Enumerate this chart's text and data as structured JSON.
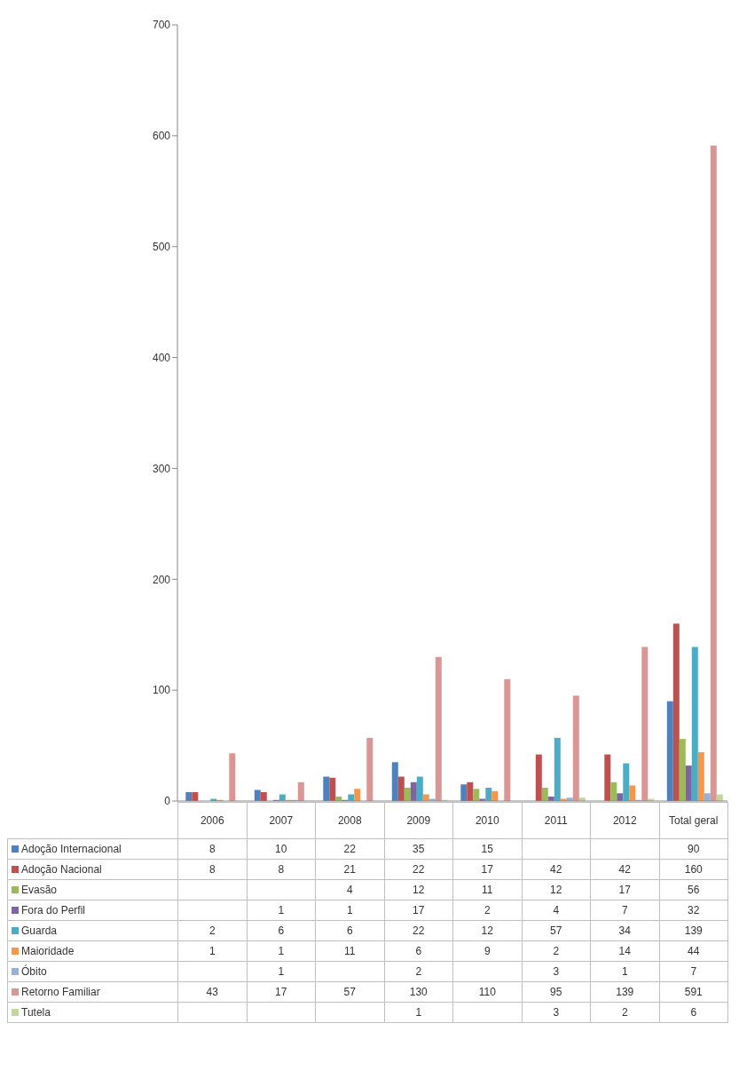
{
  "chart_data": {
    "type": "bar",
    "categories": [
      "2006",
      "2007",
      "2008",
      "2009",
      "2010",
      "2011",
      "2012",
      "Total geral"
    ],
    "series": [
      {
        "name": "Adoção Internacional",
        "color": "#4f81bd",
        "values": [
          8,
          10,
          22,
          35,
          15,
          null,
          null,
          90
        ]
      },
      {
        "name": "Adoção Nacional",
        "color": "#c0504d",
        "values": [
          8,
          8,
          21,
          22,
          17,
          42,
          42,
          160
        ]
      },
      {
        "name": "Evasão",
        "color": "#9bbb59",
        "values": [
          null,
          null,
          4,
          12,
          11,
          12,
          17,
          56
        ]
      },
      {
        "name": "Fora do Perfil",
        "color": "#8064a2",
        "values": [
          null,
          1,
          1,
          17,
          2,
          4,
          7,
          32
        ]
      },
      {
        "name": "Guarda",
        "color": "#4bacc6",
        "values": [
          2,
          6,
          6,
          22,
          12,
          57,
          34,
          139
        ]
      },
      {
        "name": "Maioridade",
        "color": "#f79646",
        "values": [
          1,
          1,
          11,
          6,
          9,
          2,
          14,
          44
        ]
      },
      {
        "name": "Óbito",
        "color": "#95b3d7",
        "values": [
          null,
          1,
          null,
          2,
          null,
          3,
          1,
          7
        ]
      },
      {
        "name": "Retorno Familiar",
        "color": "#d99694",
        "values": [
          43,
          17,
          57,
          130,
          110,
          95,
          139,
          591
        ]
      },
      {
        "name": "Tutela",
        "color": "#c3d69b",
        "values": [
          null,
          null,
          null,
          1,
          null,
          3,
          2,
          6
        ]
      }
    ],
    "ylim": [
      0,
      700
    ],
    "yticks": [
      0,
      100,
      200,
      300,
      400,
      500,
      600,
      700
    ],
    "grid": false,
    "legend": "bottom",
    "data_labels": true
  }
}
